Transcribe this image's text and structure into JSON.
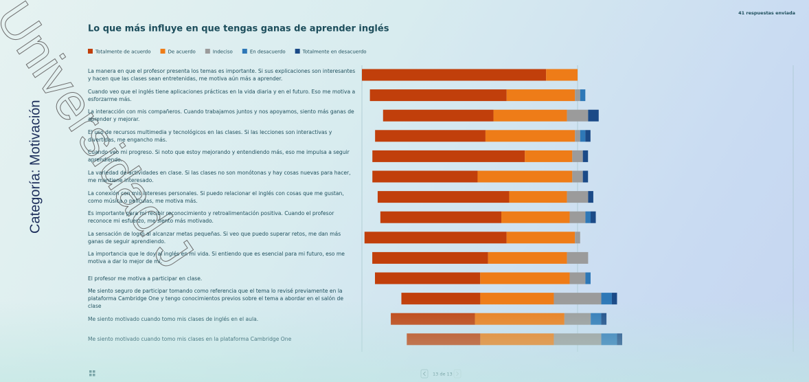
{
  "header": {
    "responses": "41 respuestas enviada"
  },
  "side_label": "Categoría: Motivación",
  "watermark": "Universidad J",
  "pagination": "13 de 13",
  "chart_data": {
    "type": "bar",
    "orientation": "horizontal",
    "stacked": "diverging",
    "neutral_series": 2,
    "title": "Lo que más influye en que tengas ganas de aprender inglés",
    "categories": [
      "La manera en que el profesor presenta los temas es importante. Si sus explicaciones son interesantes y hacen que las clases sean entretenidas, me motiva aún más a aprender.",
      "Cuando veo que el inglés tiene aplicaciones prácticas en la vida diaria y en el futuro. Eso me motiva a esforzarme más.",
      "La interacción con mis compañeros. Cuando trabajamos juntos y nos apoyamos, siento más ganas de aprender y mejorar.",
      "El uso de recursos multimedia y tecnológicos en las clases. Si las lecciones son interactivas y divertidas, me engancho más.",
      "Cuando veo mi progreso. Si noto que estoy mejorando y entendiendo más, eso me impulsa a seguir aprendiendo.",
      "La variedad de actividades en clase. Si las clases no son monótonas y hay cosas nuevas para hacer, me mantiene interesado.",
      "La conexión con mis intereses personales. Si puedo relacionar el inglés con cosas que me gustan, como música o películas, me motiva más.",
      "Es importante para mí recibir reconocimiento y retroalimentación positiva. Cuando el profesor reconoce mi esfuerzo, me siento más motivado.",
      "La sensación de logro al alcanzar metas pequeñas. Si veo que puedo superar retos, me dan más ganas de seguir aprendiendo.",
      "La importancia que le doy al inglés en mi vida. Si entiendo que es esencial para mi futuro, eso me motiva a dar lo mejor de mí.",
      "El profesor me motiva a participar en clase.",
      "Me siento seguro de participar tomando como referencia que el tema lo revisé previamente en la plataforma Cambridge One y tengo conocimientos previos sobre el tema a abordar en el salón de clase",
      "Me siento motivado cuando tomo mis clases de inglés en el aula.",
      "Me siento motivado cuando tomo mis clases en la plataforma Cambridge One"
    ],
    "series": [
      {
        "name": "Totalmente de acuerdo",
        "color": "#c13f0b",
        "values": [
          85.4,
          63.4,
          51.2,
          51.2,
          70.7,
          48.8,
          61.0,
          56.1,
          65.9,
          53.7,
          48.8,
          36.6,
          39.0,
          34.1
        ]
      },
      {
        "name": "De acuerdo",
        "color": "#ee7c18",
        "values": [
          14.6,
          31.7,
          34.1,
          41.5,
          22.0,
          43.9,
          26.8,
          31.7,
          31.7,
          36.6,
          41.5,
          34.1,
          41.5,
          34.1
        ]
      },
      {
        "name": "Indeciso",
        "color": "#9b9b9b",
        "values": [
          0,
          2.4,
          9.8,
          2.4,
          4.9,
          4.9,
          9.8,
          7.3,
          2.4,
          9.8,
          7.3,
          22.0,
          12.2,
          22.0
        ]
      },
      {
        "name": "En desacuerdo",
        "color": "#2e78b7",
        "values": [
          0,
          2.4,
          0,
          2.4,
          0,
          0,
          0,
          2.4,
          0,
          0,
          2.4,
          4.9,
          4.9,
          7.3
        ]
      },
      {
        "name": "Totalmente en desacuerdo",
        "color": "#1b4a87",
        "values": [
          0,
          0,
          4.9,
          2.4,
          2.4,
          2.4,
          2.4,
          2.4,
          0,
          0,
          0,
          2.4,
          2.4,
          2.4
        ]
      }
    ],
    "xlim": [
      -100,
      100
    ],
    "xticks": [
      -100,
      0,
      100
    ],
    "grid": true
  }
}
